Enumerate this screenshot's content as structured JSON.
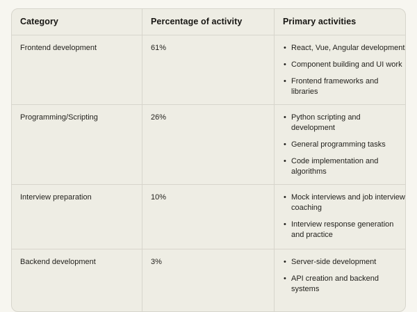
{
  "colors": {
    "page_background": "#f7f6f0",
    "table_background": "#eeede4",
    "border": "#d7d5cc",
    "text": "#201f1b"
  },
  "table": {
    "columns": [
      "Category",
      "Percentage of activity",
      "Primary activities"
    ],
    "rows": [
      {
        "category": "Frontend development",
        "percentage": "61%",
        "activities": [
          "React, Vue, Angular development",
          "Component building and UI work",
          "Frontend frameworks and libraries"
        ]
      },
      {
        "category": "Programming/Scripting",
        "percentage": "26%",
        "activities": [
          "Python scripting and development",
          "General programming tasks",
          "Code implementation and algorithms"
        ]
      },
      {
        "category": "Interview preparation",
        "percentage": "10%",
        "activities": [
          "Mock interviews and job interview coaching",
          "Interview response generation and practice"
        ]
      },
      {
        "category": "Backend development",
        "percentage": "3%",
        "activities": [
          "Server-side development",
          "API creation and backend systems"
        ]
      }
    ]
  },
  "chart_data": {
    "type": "table",
    "title": "",
    "columns": [
      "Category",
      "Percentage of activity",
      "Primary activities"
    ],
    "categories": [
      "Frontend development",
      "Programming/Scripting",
      "Interview preparation",
      "Backend development"
    ],
    "values": [
      61,
      26,
      10,
      3
    ],
    "value_unit": "%",
    "rows": [
      [
        "Frontend development",
        "61%",
        "React, Vue, Angular development; Component building and UI work; Frontend frameworks and libraries"
      ],
      [
        "Programming/Scripting",
        "26%",
        "Python scripting and development; General programming tasks; Code implementation and algorithms"
      ],
      [
        "Interview preparation",
        "10%",
        "Mock interviews and job interview coaching; Interview response generation and practice"
      ],
      [
        "Backend development",
        "3%",
        "Server-side development; API creation and backend systems"
      ]
    ]
  }
}
